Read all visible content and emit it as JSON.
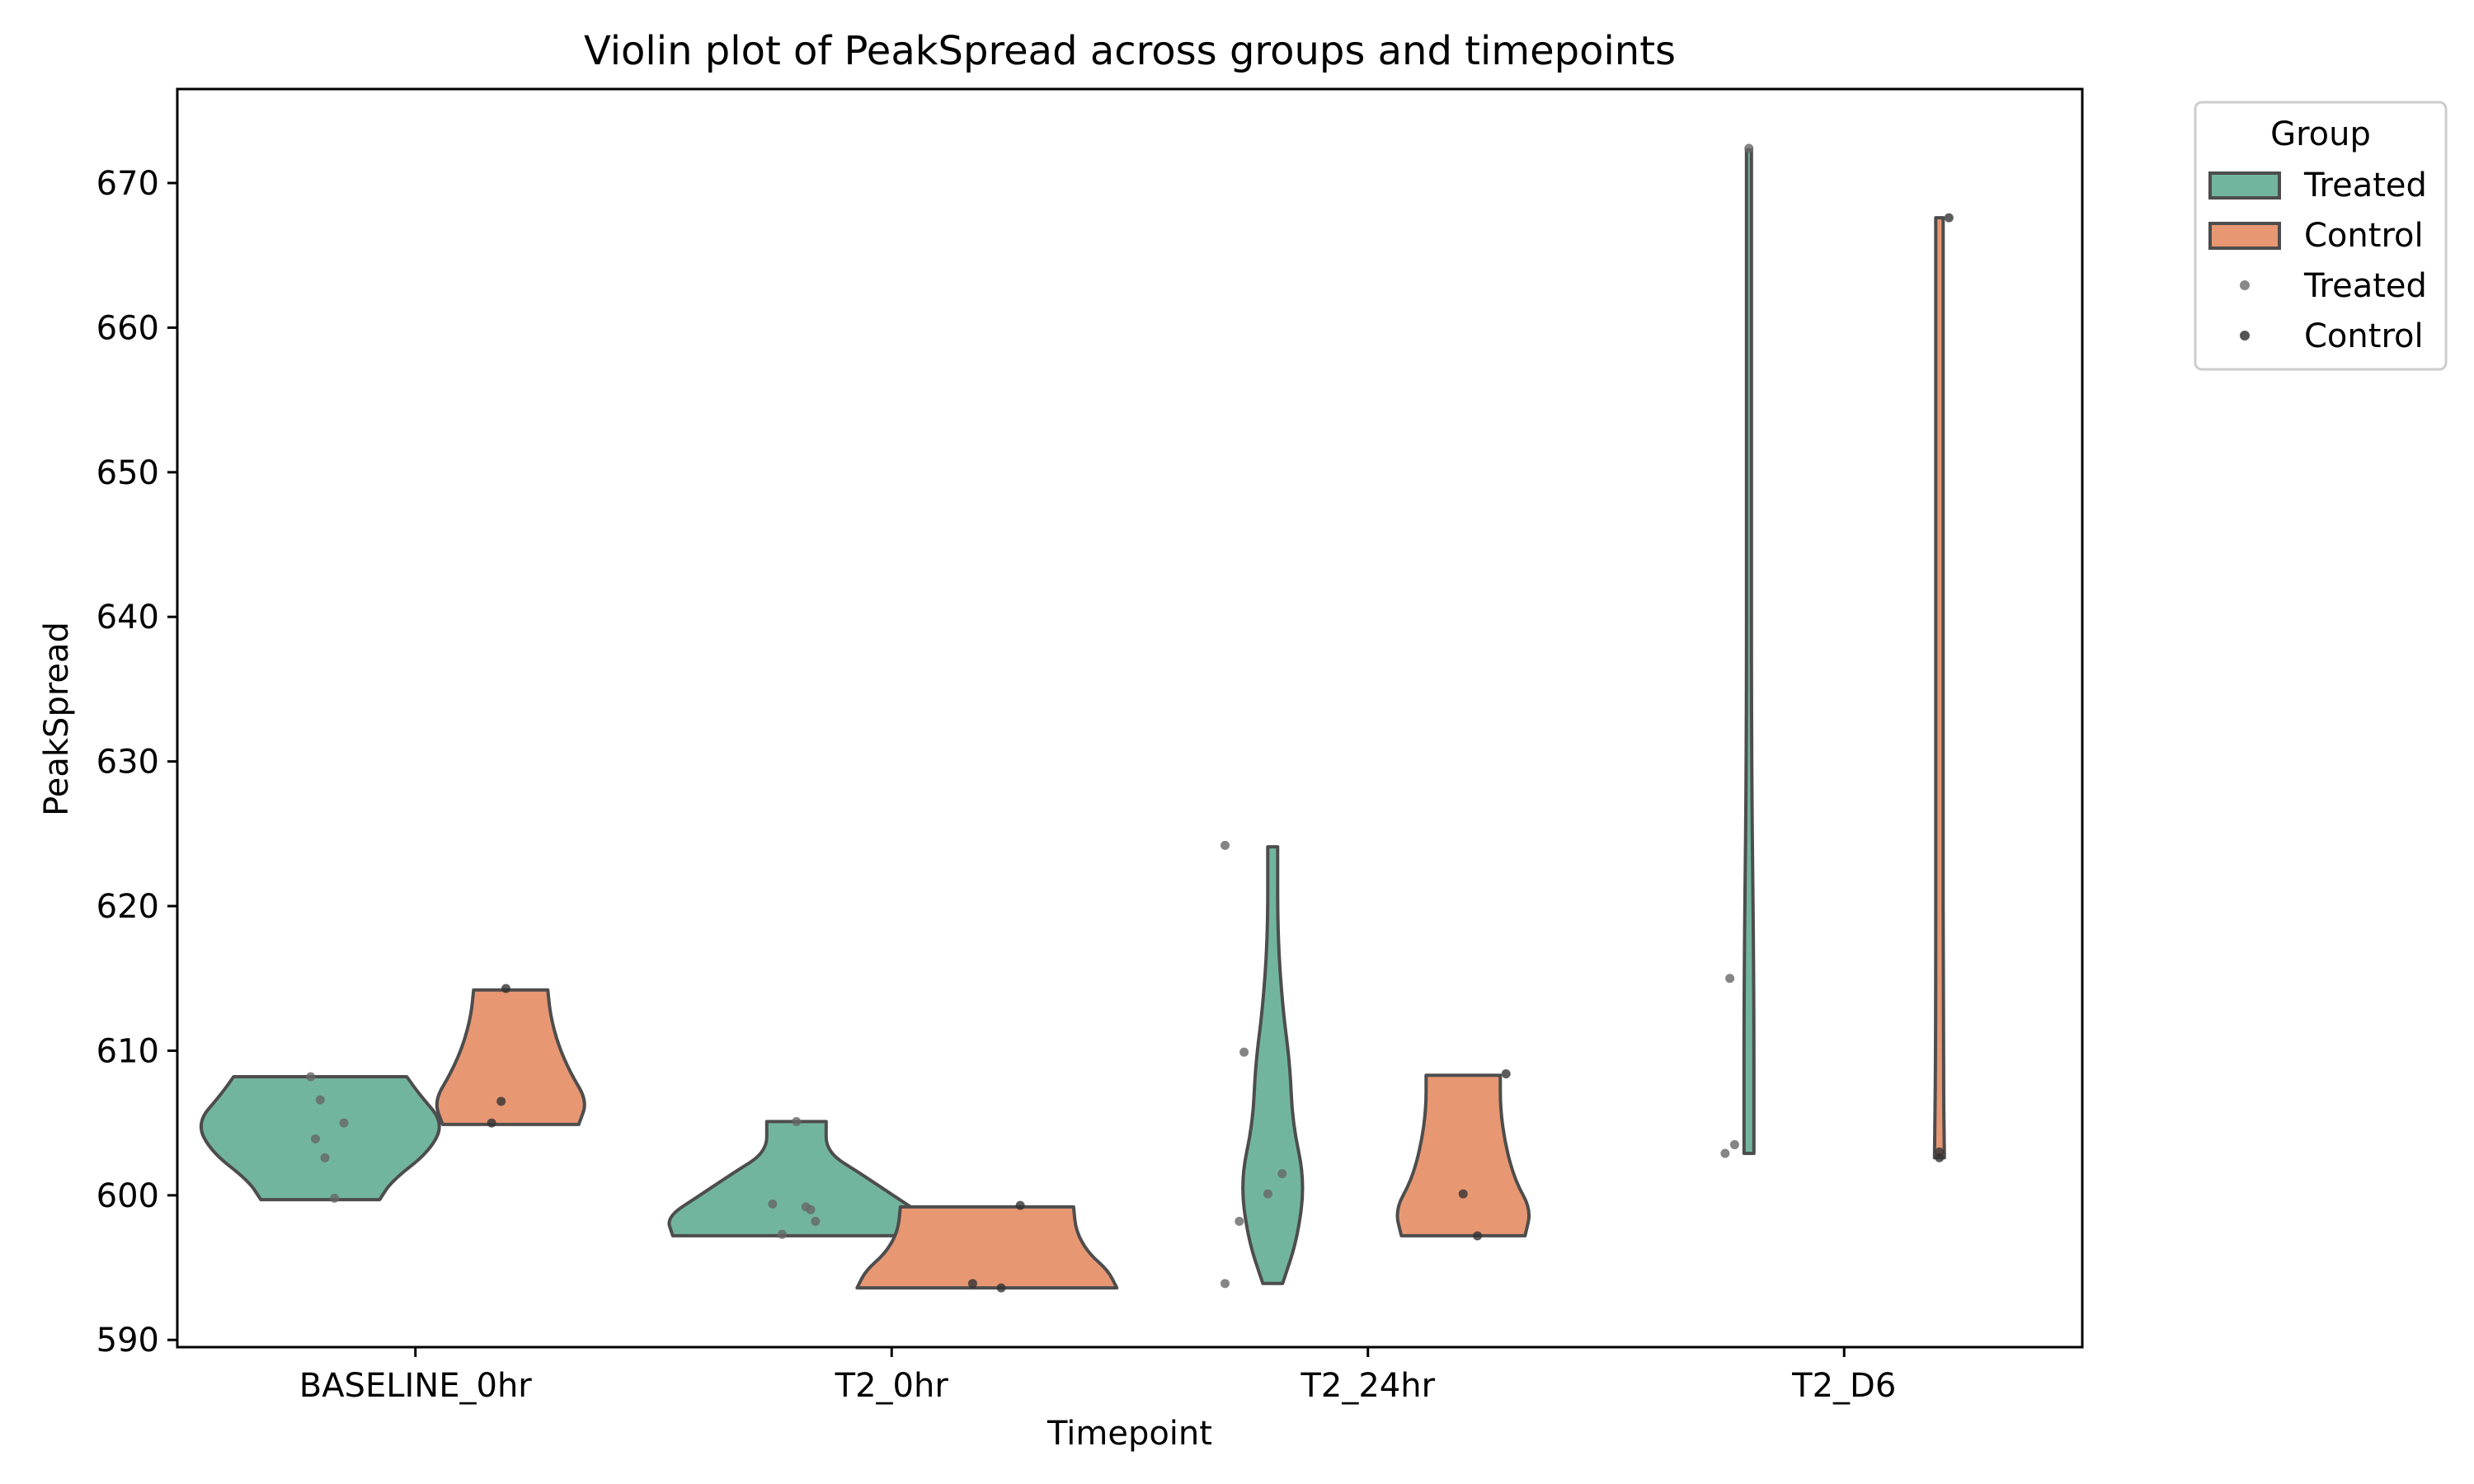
{
  "chart_data": {
    "type": "violin",
    "title": "Violin plot of PeakSpread across groups and timepoints",
    "xlabel": "Timepoint",
    "ylabel": "PeakSpread",
    "ylim": [
      589.5,
      676.5
    ],
    "yticks": [
      590,
      600,
      610,
      620,
      630,
      640,
      650,
      660,
      670
    ],
    "categories": [
      "BASELINE_0hr",
      "T2_0hr",
      "T2_24hr",
      "T2_D6"
    ],
    "legend": {
      "title": "Group",
      "placement": "outside-top-right",
      "entries": [
        {
          "label": "Treated",
          "kind": "patch",
          "color": "#72b59f"
        },
        {
          "label": "Control",
          "kind": "patch",
          "color": "#e89773"
        },
        {
          "label": "Treated",
          "kind": "dot",
          "color": "#888888"
        },
        {
          "label": "Control",
          "kind": "dot",
          "color": "#555555"
        }
      ]
    },
    "colors": {
      "Treated": "#72b59f",
      "Control": "#e89773",
      "outline": "#4d4d4d",
      "point": "#333333"
    },
    "series": [
      {
        "name": "Treated",
        "violins": [
          {
            "category": "BASELINE_0hr",
            "min": 599.7,
            "max": 608.2,
            "density": [
              [
                599.7,
                0.48
              ],
              [
                601,
                0.58
              ],
              [
                603,
                0.88
              ],
              [
                605,
                1.0
              ],
              [
                607,
                0.8
              ],
              [
                608.2,
                0.7
              ]
            ],
            "points": [
              [
                -0.22,
                608.2
              ],
              [
                -0.2,
                606.6
              ],
              [
                -0.15,
                605.0
              ],
              [
                -0.21,
                603.9
              ],
              [
                -0.19,
                602.6
              ],
              [
                -0.17,
                599.8
              ]
            ]
          },
          {
            "category": "T2_0hr",
            "min": 597.2,
            "max": 605.1,
            "density": [
              [
                597.2,
                1.0
              ],
              [
                598.5,
                1.05
              ],
              [
                600,
                0.78
              ],
              [
                601.5,
                0.52
              ],
              [
                603,
                0.24
              ],
              [
                605.1,
                0.24
              ]
            ],
            "points": [
              [
                -0.25,
                599.4
              ],
              [
                -0.23,
                597.3
              ],
              [
                -0.2,
                605.1
              ],
              [
                -0.18,
                599.2
              ],
              [
                -0.17,
                599.0
              ],
              [
                -0.16,
                598.2
              ]
            ]
          },
          {
            "category": "T2_24hr",
            "min": 593.9,
            "max": 624.1,
            "density": [
              [
                593.9,
                0.08
              ],
              [
                597,
                0.2
              ],
              [
                601,
                0.26
              ],
              [
                605,
                0.16
              ],
              [
                609,
                0.14
              ],
              [
                613,
                0.08
              ],
              [
                618,
                0.04
              ],
              [
                624.1,
                0.04
              ]
            ],
            "points": [
              [
                -0.3,
                593.9
              ],
              [
                -0.27,
                598.2
              ],
              [
                -0.26,
                609.9
              ],
              [
                -0.3,
                624.2
              ],
              [
                -0.21,
                600.1
              ],
              [
                -0.18,
                601.5
              ]
            ]
          },
          {
            "category": "T2_D6",
            "min": 602.9,
            "max": 672.3,
            "density": [
              [
                602.9,
                0.04
              ],
              [
                615,
                0.04
              ],
              [
                630,
                0.02
              ],
              [
                650,
                0.02
              ],
              [
                672.3,
                0.02
              ]
            ],
            "points": [
              [
                -0.25,
                602.9
              ],
              [
                -0.23,
                603.5
              ],
              [
                -0.24,
                615.0
              ],
              [
                -0.2,
                672.4
              ]
            ]
          }
        ]
      },
      {
        "name": "Control",
        "violins": [
          {
            "category": "BASELINE_0hr",
            "min": 604.9,
            "max": 614.2,
            "density": [
              [
                604.9,
                0.55
              ],
              [
                606.5,
                0.62
              ],
              [
                608.5,
                0.48
              ],
              [
                610.5,
                0.38
              ],
              [
                612.5,
                0.32
              ],
              [
                614.2,
                0.3
              ]
            ],
            "points": [
              [
                0.19,
                614.3
              ],
              [
                0.18,
                606.5
              ],
              [
                0.16,
                605.0
              ]
            ]
          },
          {
            "category": "T2_0hr",
            "min": 593.6,
            "max": 599.2,
            "density": [
              [
                593.6,
                1.05
              ],
              [
                594.8,
                0.98
              ],
              [
                596,
                0.82
              ],
              [
                597.5,
                0.72
              ],
              [
                599.2,
                0.7
              ]
            ],
            "points": [
              [
                0.17,
                593.9
              ],
              [
                0.23,
                593.6
              ],
              [
                0.27,
                599.3
              ]
            ]
          },
          {
            "category": "T2_24hr",
            "min": 597.2,
            "max": 608.3,
            "density": [
              [
                597.2,
                0.5
              ],
              [
                599,
                0.55
              ],
              [
                601,
                0.42
              ],
              [
                603.5,
                0.34
              ],
              [
                606,
                0.3
              ],
              [
                608.3,
                0.3
              ]
            ],
            "points": [
              [
                0.2,
                600.1
              ],
              [
                0.23,
                597.2
              ],
              [
                0.29,
                608.4
              ]
            ]
          },
          {
            "category": "T2_D6",
            "min": 602.6,
            "max": 667.6,
            "density": [
              [
                602.6,
                0.04
              ],
              [
                610,
                0.03
              ],
              [
                630,
                0.03
              ],
              [
                650,
                0.03
              ],
              [
                667.6,
                0.03
              ]
            ],
            "points": [
              [
                0.2,
                602.6
              ],
              [
                0.2,
                603.0
              ],
              [
                0.22,
                667.6
              ]
            ]
          }
        ]
      }
    ]
  }
}
